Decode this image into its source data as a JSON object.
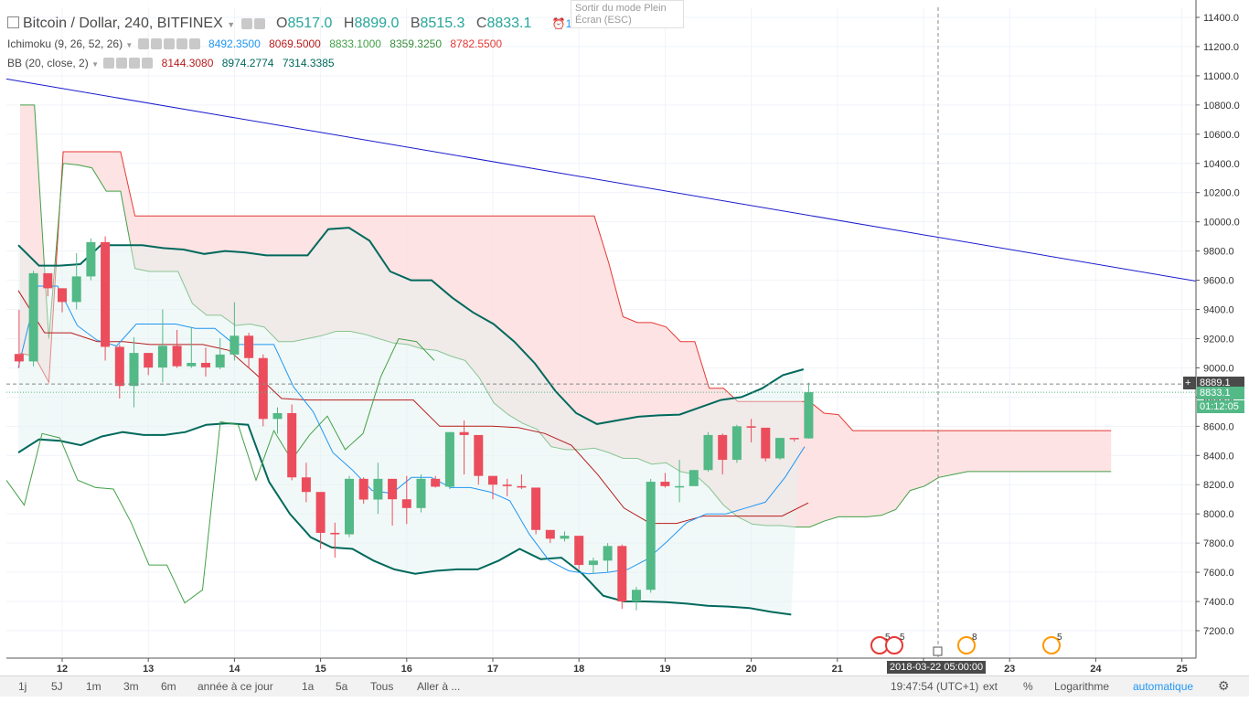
{
  "header": {
    "symbol_title": "Bitcoin / Dollar, 240, BITFINEX",
    "o_label": "O",
    "o_value": "8517.0",
    "h_label": "H",
    "h_value": "8899.0",
    "b_label": "B",
    "b_value": "8515.3",
    "c_label": "C",
    "c_value": "8833.1",
    "alerts_count": "1"
  },
  "tooltip": {
    "line1": "Sortir du mode Plein",
    "line2": "Écran (ESC)"
  },
  "indicators": [
    {
      "name": "Ichimoku (9, 26, 52, 26)",
      "values": [
        {
          "text": "8492.3500",
          "color": "#2196f3"
        },
        {
          "text": "8069.5000",
          "color": "#b71c1c"
        },
        {
          "text": "8833.1000",
          "color": "#43a047"
        },
        {
          "text": "8359.3250",
          "color": "#388e3c"
        },
        {
          "text": "8782.5500",
          "color": "#e53935"
        }
      ]
    },
    {
      "name": "BB (20, close, 2)",
      "values": [
        {
          "text": "8144.3080",
          "color": "#b71c1c"
        },
        {
          "text": "8974.2774",
          "color": "#00695c"
        },
        {
          "text": "7314.3385",
          "color": "#00695c"
        }
      ]
    }
  ],
  "price_axis": {
    "ticks": [
      "11400.0",
      "11200.0",
      "11000.0",
      "10800.0",
      "10600.0",
      "10400.0",
      "10200.0",
      "10000.0",
      "9800.0",
      "9600.0",
      "9400.0",
      "9200.0",
      "9000.0",
      "8800.0",
      "8600.0",
      "8400.0",
      "8200.0",
      "8000.0",
      "7800.0",
      "7600.0",
      "7400.0",
      "7200.0"
    ],
    "crosshair_label": "8889.1",
    "last_price_label": "8833.1",
    "countdown_label": "01:12:05"
  },
  "time_axis": {
    "ticks": [
      "12",
      "13",
      "14",
      "15",
      "16",
      "17",
      "18",
      "19",
      "20",
      "21",
      "22",
      "23",
      "24",
      "25"
    ],
    "crosshair_label": "2018-03-22 05:00:00"
  },
  "events": [
    {
      "count": "5"
    },
    {
      "count": "5"
    },
    {
      "count": "8"
    },
    {
      "count": "5"
    }
  ],
  "toolbar": {
    "ranges": [
      "1j",
      "5J",
      "1m",
      "3m",
      "6m",
      "année à ce jour",
      "1a",
      "5a",
      "Tous"
    ],
    "goto": "Aller à ...",
    "clock": "19:47:54 (UTC+1)",
    "ext": "ext",
    "percent": "%",
    "log": "Logarithme",
    "auto": "automatique"
  },
  "colors": {
    "up": "#53b987",
    "down": "#eb4d5c",
    "bb_basis": "#b71c1c",
    "bb_band": "#00695c",
    "kumo_bear": "#fde0e0",
    "kumo_bull": "#e0f2f0",
    "trendline": "#1a1acd",
    "conversion": "#2196f3"
  },
  "chart_data": {
    "type": "candlestick",
    "title": "Bitcoin / Dollar, 240, BITFINEX",
    "y_scale": "linear",
    "ylim": [
      7050,
      11500
    ],
    "x_day_labels": [
      "12",
      "13",
      "14",
      "15",
      "16",
      "17",
      "18",
      "19",
      "20",
      "21",
      "22",
      "23",
      "24",
      "25"
    ],
    "candles_4h": [
      [
        9095,
        9397,
        9000,
        9044
      ],
      [
        9044,
        9664,
        9010,
        9648
      ],
      [
        9648,
        9597,
        9490,
        9545
      ],
      [
        9545,
        9545,
        9380,
        9451
      ],
      [
        9451,
        9785,
        9400,
        9626
      ],
      [
        9626,
        9886,
        9600,
        9861
      ],
      [
        9861,
        9900,
        9050,
        9144
      ],
      [
        9144,
        9160,
        8790,
        8876
      ],
      [
        8876,
        9210,
        8730,
        9102
      ],
      [
        9102,
        9097,
        8950,
        9002
      ],
      [
        9002,
        9400,
        8900,
        9151
      ],
      [
        9151,
        9260,
        9000,
        9011
      ],
      [
        9011,
        9280,
        9000,
        9034
      ],
      [
        9034,
        9138,
        8940,
        9003
      ],
      [
        9003,
        9203,
        8990,
        9091
      ],
      [
        9091,
        9449,
        9050,
        9220
      ],
      [
        9220,
        9240,
        9000,
        9067
      ],
      [
        9067,
        9092,
        8600,
        8650
      ],
      [
        8650,
        8730,
        8550,
        8690
      ],
      [
        8690,
        8749,
        8230,
        8250
      ],
      [
        8250,
        8350,
        8080,
        8150
      ],
      [
        8150,
        8150,
        7760,
        7870
      ],
      [
        7870,
        7940,
        7700,
        7860
      ],
      [
        7860,
        8260,
        7840,
        8240
      ],
      [
        8240,
        8250,
        8070,
        8098
      ],
      [
        8098,
        8350,
        8000,
        8240
      ],
      [
        8240,
        8200,
        7920,
        8100
      ],
      [
        8100,
        8260,
        7930,
        8040
      ],
      [
        8040,
        8270,
        8010,
        8240
      ],
      [
        8240,
        8260,
        8180,
        8186
      ],
      [
        8186,
        8560,
        8170,
        8560
      ],
      [
        8560,
        8640,
        8270,
        8540
      ],
      [
        8540,
        8450,
        8200,
        8260
      ],
      [
        8260,
        8200,
        8100,
        8200
      ],
      [
        8200,
        8240,
        8120,
        8190
      ],
      [
        8190,
        8270,
        8170,
        8180
      ],
      [
        8180,
        8100,
        7860,
        7890
      ],
      [
        7890,
        7860,
        7800,
        7830
      ],
      [
        7830,
        7880,
        7810,
        7850
      ],
      [
        7850,
        7830,
        7620,
        7650
      ],
      [
        7650,
        7700,
        7590,
        7680
      ],
      [
        7680,
        7800,
        7600,
        7780
      ],
      [
        7780,
        7790,
        7350,
        7400
      ],
      [
        7400,
        7500,
        7340,
        7480
      ],
      [
        7480,
        8240,
        7460,
        8220
      ],
      [
        8220,
        8280,
        8180,
        8190
      ],
      [
        8190,
        8370,
        8080,
        8190
      ],
      [
        8190,
        8300,
        8200,
        8300
      ],
      [
        8300,
        8560,
        8290,
        8540
      ],
      [
        8540,
        8550,
        8270,
        8370
      ],
      [
        8370,
        8610,
        8350,
        8600
      ],
      [
        8600,
        8650,
        8490,
        8590
      ],
      [
        8590,
        8580,
        8360,
        8380
      ],
      [
        8380,
        8520,
        8370,
        8520
      ],
      [
        8520,
        8510,
        8495,
        8515
      ],
      [
        8517,
        8899,
        8515,
        8833
      ]
    ],
    "bollinger": {
      "length": 20,
      "source": "close",
      "mult": 2,
      "basis_last": 8144.308,
      "upper_last": 8974.2774,
      "lower_last": 7314.3385
    },
    "bb_upper_path": [
      9840,
      9700,
      9700,
      9710,
      9840,
      9840,
      9840,
      9820,
      9810,
      9780,
      9800,
      9790,
      9770,
      9770,
      9770,
      9950,
      9960,
      9870,
      9660,
      9600,
      9600,
      9480,
      9380,
      9300,
      9180,
      9030,
      8840,
      8690,
      8615,
      8640,
      8665,
      8675,
      8680,
      8730,
      8780,
      8800,
      8860,
      8950,
      8990
    ],
    "bb_basis_path": [
      9530,
      9240,
      9240,
      9180,
      9180,
      9160,
      9160,
      9160,
      9120,
      8960,
      8790,
      8780,
      8780,
      8780,
      8780,
      8780,
      8600,
      8600,
      8600,
      8590,
      8550,
      8470,
      8270,
      8040,
      7935,
      7935,
      7985,
      7985,
      7985,
      7985,
      8075
    ],
    "bb_lower_path": [
      8420,
      8510,
      8500,
      8470,
      8530,
      8560,
      8540,
      8540,
      8560,
      8610,
      8620,
      8610,
      8220,
      8000,
      7840,
      7770,
      7760,
      7680,
      7620,
      7590,
      7610,
      7620,
      7620,
      7680,
      7760,
      7690,
      7700,
      7590,
      7440,
      7400,
      7400,
      7395,
      7385,
      7370,
      7365,
      7355,
      7330,
      7310
    ],
    "ichimoku": {
      "conversion": 8492.35,
      "base": 8069.5,
      "lagging": 8833.1,
      "lead_a": 8359.325,
      "lead_b": 8782.55
    }
  }
}
